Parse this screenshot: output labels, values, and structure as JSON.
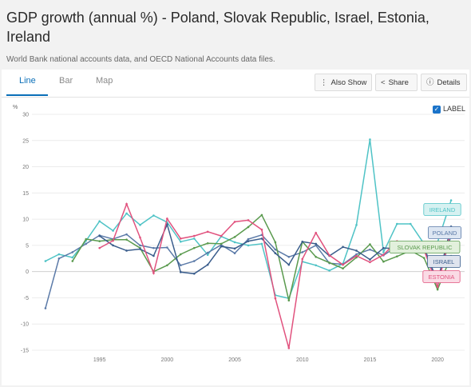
{
  "header": {
    "title": "GDP growth (annual %) - Poland, Slovak Republic, Israel, Estonia, Ireland",
    "subtitle": "World Bank national accounts data, and OECD National Accounts data files."
  },
  "tabs": [
    {
      "label": "Line",
      "active": true
    },
    {
      "label": "Bar",
      "active": false
    },
    {
      "label": "Map",
      "active": false
    }
  ],
  "toolbar": {
    "also_show": "Also Show",
    "share": "Share",
    "details": "Details"
  },
  "label_toggle": {
    "label": "LABEL",
    "checked": true
  },
  "chart_data": {
    "type": "line",
    "title": "",
    "ylabel": "%",
    "xlabel": "",
    "ylim": [
      -15,
      30
    ],
    "xlim": [
      1990,
      2022
    ],
    "yticks": [
      -15,
      -10,
      -5,
      0,
      5,
      10,
      15,
      20,
      25,
      30
    ],
    "xticks": [
      1995,
      2000,
      2005,
      2010,
      2015,
      2020
    ],
    "x": [
      1990,
      1991,
      1992,
      1993,
      1994,
      1995,
      1996,
      1997,
      1998,
      1999,
      2000,
      2001,
      2002,
      2003,
      2004,
      2005,
      2006,
      2007,
      2008,
      2009,
      2010,
      2011,
      2012,
      2013,
      2014,
      2015,
      2016,
      2017,
      2018,
      2019,
      2020,
      2021
    ],
    "series": [
      {
        "name": "IRELAND",
        "color": "#4fc3c6",
        "values": [
          null,
          2.0,
          3.3,
          2.7,
          5.9,
          9.6,
          7.8,
          11.1,
          8.9,
          10.7,
          9.4,
          5.7,
          6.3,
          3.2,
          6.7,
          5.6,
          5.0,
          5.3,
          -4.5,
          -5.1,
          1.9,
          1.2,
          0.2,
          1.5,
          8.9,
          25.2,
          3.7,
          9.1,
          9.1,
          5.3,
          5.6,
          13.6
        ]
      },
      {
        "name": "POLAND",
        "color": "#5b7aa8",
        "values": [
          null,
          -7.0,
          2.5,
          3.7,
          5.3,
          6.9,
          6.2,
          7.1,
          5.0,
          4.5,
          4.6,
          1.2,
          2.0,
          3.6,
          5.1,
          3.5,
          6.2,
          7.0,
          4.2,
          2.8,
          3.7,
          5.0,
          1.6,
          1.4,
          3.3,
          4.2,
          3.1,
          4.8,
          5.4,
          4.7,
          -2.0,
          6.9
        ]
      },
      {
        "name": "SLOVAK REPUBLIC",
        "color": "#5a9a4e",
        "values": [
          null,
          null,
          null,
          2.0,
          6.2,
          5.8,
          6.1,
          6.1,
          4.5,
          0.0,
          1.2,
          3.3,
          4.5,
          5.4,
          5.3,
          6.6,
          8.5,
          10.8,
          5.6,
          -5.5,
          5.7,
          2.8,
          1.7,
          0.6,
          2.7,
          5.2,
          1.9,
          2.9,
          4.0,
          2.6,
          -3.4,
          3.0
        ]
      },
      {
        "name": "ISRAEL",
        "color": "#3a5d8c",
        "values": [
          null,
          null,
          null,
          null,
          null,
          6.8,
          5.0,
          4.0,
          4.3,
          3.0,
          9.0,
          -0.1,
          -0.4,
          1.3,
          4.8,
          4.4,
          5.8,
          6.3,
          3.5,
          1.3,
          5.7,
          5.3,
          3.0,
          4.7,
          4.0,
          2.3,
          4.5,
          4.4,
          4.1,
          4.2,
          -1.9,
          8.6
        ]
      },
      {
        "name": "ESTONIA",
        "color": "#e1527e",
        "values": [
          null,
          null,
          null,
          null,
          null,
          4.5,
          5.9,
          12.9,
          6.5,
          -0.3,
          10.1,
          6.3,
          6.8,
          7.6,
          6.8,
          9.5,
          9.8,
          8.0,
          -5.1,
          -14.6,
          2.4,
          7.4,
          3.1,
          1.3,
          3.0,
          1.8,
          3.2,
          5.8,
          4.1,
          4.1,
          -2.9,
          8.0
        ]
      }
    ]
  }
}
